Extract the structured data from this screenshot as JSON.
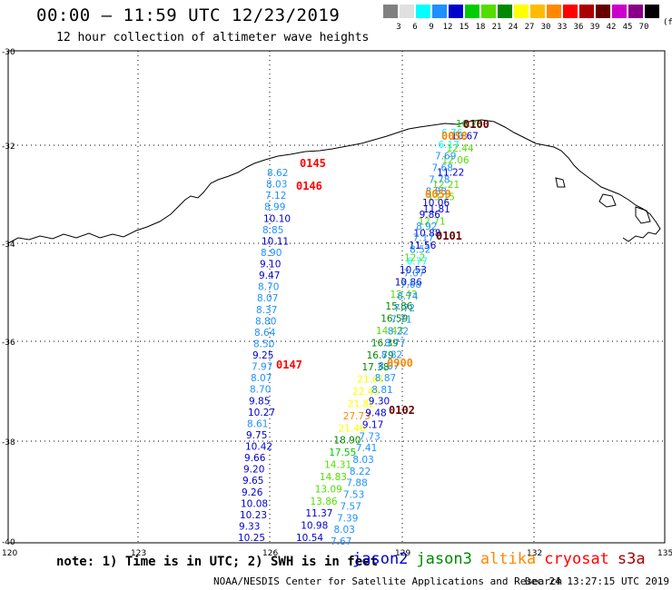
{
  "header": {
    "title": "00:00 – 11:59 UTC 12/23/2019",
    "subtitle": "12 hour collection of altimeter wave heights"
  },
  "color_scale": {
    "unit": "(ft)",
    "bins": [
      {
        "label": "",
        "color": "#808080"
      },
      {
        "label": "3",
        "color": "#e0e0e0"
      },
      {
        "label": "6",
        "color": "#00ffff"
      },
      {
        "label": "9",
        "color": "#1e90ff"
      },
      {
        "label": "12",
        "color": "#0000cd"
      },
      {
        "label": "15",
        "color": "#00cc00"
      },
      {
        "label": "18",
        "color": "#55dd00"
      },
      {
        "label": "21",
        "color": "#008800"
      },
      {
        "label": "24",
        "color": "#ffff00"
      },
      {
        "label": "27",
        "color": "#ffbb00"
      },
      {
        "label": "30",
        "color": "#ff8800"
      },
      {
        "label": "33",
        "color": "#ff0000"
      },
      {
        "label": "36",
        "color": "#aa0000"
      },
      {
        "label": "39",
        "color": "#660000"
      },
      {
        "label": "42",
        "color": "#cc00cc"
      },
      {
        "label": "45",
        "color": "#880088"
      },
      {
        "label": "70",
        "color": "#000000"
      }
    ]
  },
  "axes": {
    "lat_labels": [
      "-30",
      "-32",
      "-34",
      "-36",
      "-38",
      "-40"
    ],
    "lon_labels": [
      "120",
      "123",
      "126",
      "129",
      "132",
      "135"
    ]
  },
  "passes": [
    {
      "time": "0100",
      "color": "#660000"
    },
    {
      "time": "0058",
      "color": "#ff8800"
    },
    {
      "time": "0145",
      "color": "#ff0000"
    },
    {
      "time": "0146",
      "color": "#ff0000"
    },
    {
      "time": "0059",
      "color": "#ff8800"
    },
    {
      "time": "0101",
      "color": "#660000"
    },
    {
      "time": "0147",
      "color": "#ff0000"
    },
    {
      "time": "0900",
      "color": "#ff8800"
    },
    {
      "time": "0102",
      "color": "#660000"
    }
  ],
  "tracks": [
    {
      "values": [
        {
          "v": "8.62",
          "c": "#1e90ff"
        },
        {
          "v": "8.03",
          "c": "#1e90ff"
        },
        {
          "v": "7.12",
          "c": "#1e90ff"
        },
        {
          "v": "8.99",
          "c": "#1e90ff"
        },
        {
          "v": "10.10",
          "c": "#0000cd"
        },
        {
          "v": "8.85",
          "c": "#1e90ff"
        },
        {
          "v": "10.11",
          "c": "#0000cd"
        },
        {
          "v": "8.90",
          "c": "#1e90ff"
        },
        {
          "v": "9.10",
          "c": "#0000cd"
        },
        {
          "v": "9.47",
          "c": "#0000cd"
        },
        {
          "v": "8.70",
          "c": "#1e90ff"
        },
        {
          "v": "8.07",
          "c": "#1e90ff"
        },
        {
          "v": "8.37",
          "c": "#1e90ff"
        },
        {
          "v": "8.80",
          "c": "#1e90ff"
        },
        {
          "v": "8.64",
          "c": "#1e90ff"
        },
        {
          "v": "8.50",
          "c": "#1e90ff"
        },
        {
          "v": "9.25",
          "c": "#0000cd"
        },
        {
          "v": "7.97",
          "c": "#1e90ff"
        },
        {
          "v": "8.07",
          "c": "#1e90ff"
        },
        {
          "v": "8.70",
          "c": "#1e90ff"
        },
        {
          "v": "9.85",
          "c": "#0000cd"
        },
        {
          "v": "10.27",
          "c": "#0000cd"
        },
        {
          "v": "8.61",
          "c": "#1e90ff"
        },
        {
          "v": "9.75",
          "c": "#0000cd"
        },
        {
          "v": "10.42",
          "c": "#0000cd"
        },
        {
          "v": "9.66",
          "c": "#0000cd"
        },
        {
          "v": "9.20",
          "c": "#0000cd"
        },
        {
          "v": "9.65",
          "c": "#0000cd"
        },
        {
          "v": "9.26",
          "c": "#0000cd"
        },
        {
          "v": "10.08",
          "c": "#0000cd"
        },
        {
          "v": "10.23",
          "c": "#0000cd"
        },
        {
          "v": "9.33",
          "c": "#0000cd"
        },
        {
          "v": "10.25",
          "c": "#0000cd"
        }
      ]
    },
    {
      "values": [
        {
          "v": "16.75",
          "c": "#00cc00"
        },
        {
          "v": "10.67",
          "c": "#0000cd"
        },
        {
          "v": "12.44",
          "c": "#55dd00"
        },
        {
          "v": "12.06",
          "c": "#55dd00"
        },
        {
          "v": "11.22",
          "c": "#0000cd"
        },
        {
          "v": "12.21",
          "c": "#55dd00"
        },
        {
          "v": "13.15",
          "c": "#55dd00"
        },
        {
          "v": "11.81",
          "c": "#0000cd"
        },
        {
          "v": "12.71",
          "c": "#55dd00"
        },
        {
          "v": "10.88",
          "c": "#0000cd"
        },
        {
          "v": "11.56",
          "c": "#0000cd"
        },
        {
          "v": "12.2",
          "c": "#55dd00"
        },
        {
          "v": "10.53",
          "c": "#0000cd"
        },
        {
          "v": "10.86",
          "c": "#0000cd"
        },
        {
          "v": "12.43",
          "c": "#55dd00"
        },
        {
          "v": "15.86",
          "c": "#008800"
        },
        {
          "v": "16.59",
          "c": "#008800"
        },
        {
          "v": "14.43",
          "c": "#55dd00"
        },
        {
          "v": "16.39",
          "c": "#008800"
        },
        {
          "v": "16.79",
          "c": "#008800"
        },
        {
          "v": "17.38",
          "c": "#008800"
        },
        {
          "v": "21.61",
          "c": "#ffff00"
        },
        {
          "v": "22.45",
          "c": "#ffff00"
        },
        {
          "v": "21.82",
          "c": "#ffff00"
        },
        {
          "v": "27.73",
          "c": "#ff8800"
        },
        {
          "v": "21.46",
          "c": "#ffff00"
        },
        {
          "v": "18.90",
          "c": "#008800"
        },
        {
          "v": "17.55",
          "c": "#00cc00"
        },
        {
          "v": "14.31",
          "c": "#55dd00"
        },
        {
          "v": "14.83",
          "c": "#55dd00"
        },
        {
          "v": "13.09",
          "c": "#55dd00"
        },
        {
          "v": "13.86",
          "c": "#55dd00"
        },
        {
          "v": "11.37",
          "c": "#0000cd"
        },
        {
          "v": "10.98",
          "c": "#0000cd"
        },
        {
          "v": "10.54",
          "c": "#0000cd"
        }
      ]
    },
    {
      "values": [
        {
          "v": "6.76",
          "c": "#00ffff"
        },
        {
          "v": "6.17",
          "c": "#00ffff"
        },
        {
          "v": "7.69",
          "c": "#1e90ff"
        },
        {
          "v": "7.68",
          "c": "#1e90ff"
        },
        {
          "v": "7.78",
          "c": "#1e90ff"
        },
        {
          "v": "8.88",
          "c": "#1e90ff"
        },
        {
          "v": "10.06",
          "c": "#0000cd"
        },
        {
          "v": "9.86",
          "c": "#0000cd"
        },
        {
          "v": "8.92",
          "c": "#1e90ff"
        },
        {
          "v": "7.17",
          "c": "#1e90ff"
        },
        {
          "v": "8.52",
          "c": "#1e90ff"
        },
        {
          "v": "6.77",
          "c": "#00ffff"
        },
        {
          "v": "7.07",
          "c": "#1e90ff"
        },
        {
          "v": "7.68",
          "c": "#1e90ff"
        },
        {
          "v": "8.74",
          "c": "#1e90ff"
        },
        {
          "v": "7.72",
          "c": "#1e90ff"
        },
        {
          "v": "7.71",
          "c": "#1e90ff"
        },
        {
          "v": "8.22",
          "c": "#1e90ff"
        },
        {
          "v": "8.77",
          "c": "#1e90ff"
        },
        {
          "v": "8.82",
          "c": "#1e90ff"
        },
        {
          "v": "8.07",
          "c": "#1e90ff"
        },
        {
          "v": "8.87",
          "c": "#1e90ff"
        },
        {
          "v": "8.81",
          "c": "#1e90ff"
        },
        {
          "v": "9.30",
          "c": "#0000cd"
        },
        {
          "v": "9.48",
          "c": "#0000cd"
        },
        {
          "v": "9.17",
          "c": "#0000cd"
        },
        {
          "v": "7.73",
          "c": "#1e90ff"
        },
        {
          "v": "7.41",
          "c": "#1e90ff"
        },
        {
          "v": "8.03",
          "c": "#1e90ff"
        },
        {
          "v": "8.22",
          "c": "#1e90ff"
        },
        {
          "v": "7.88",
          "c": "#1e90ff"
        },
        {
          "v": "7.53",
          "c": "#1e90ff"
        },
        {
          "v": "7.57",
          "c": "#1e90ff"
        },
        {
          "v": "7.39",
          "c": "#1e90ff"
        },
        {
          "v": "8.03",
          "c": "#1e90ff"
        },
        {
          "v": "7.67",
          "c": "#1e90ff"
        }
      ]
    }
  ],
  "footer": {
    "note": "note: 1) Time is in UTC; 2) SWH is in feet",
    "satellites": [
      {
        "name": "jason2",
        "color": "#0000cd"
      },
      {
        "name": "jason3",
        "color": "#008800"
      },
      {
        "name": "altika",
        "color": "#ff8800"
      },
      {
        "name": "cryosat",
        "color": "#ff0000"
      },
      {
        "name": "s3a",
        "color": "#aa0000"
      }
    ],
    "credit": "NOAA/NESDIS Center for Satellite Applications and Research",
    "timestamp": "Dec 24 13:27:15 UTC 2019"
  }
}
